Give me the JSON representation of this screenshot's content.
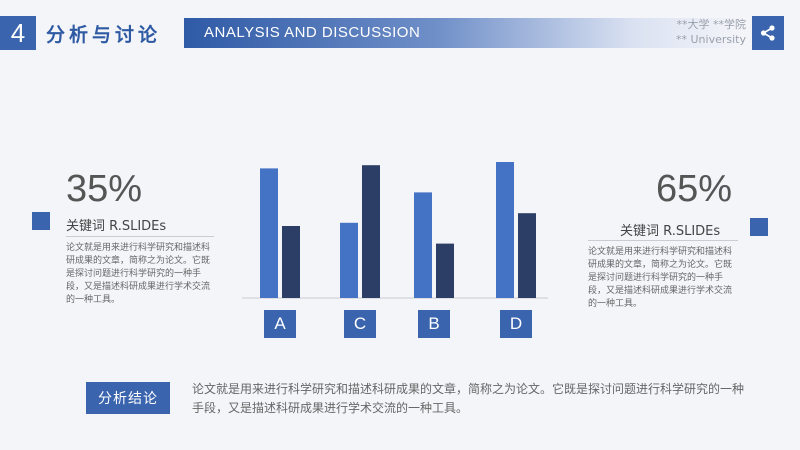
{
  "header": {
    "number": "4",
    "title_cn": "分析与讨论",
    "title_en": "ANALYSIS AND DISCUSSION",
    "school_line1": "**大学 **学院",
    "school_line2": "** University"
  },
  "left_stat": {
    "percent": "35%",
    "keyword": "关键词 R.SLIDEs",
    "paragraph": "论文就是用来进行科学研究和描述科研成果的文章，简称之为论文。它既是探讨问题进行科学研究的一种手段，又是描述科研成果进行学术交流的一种工具。"
  },
  "right_stat": {
    "percent": "65%",
    "keyword": "关键词 R.SLIDEs",
    "paragraph": "论文就是用来进行科学研究和描述科研成果的文章，简称之为论文。它既是探讨问题进行科学研究的一种手段，又是描述科研成果进行学术交流的一种工具。"
  },
  "conclusion": {
    "button": "分析结论",
    "text": "论文就是用来进行科学研究和描述科研成果的文章，简称之为论文。它既是探讨问题进行科学研究的一种手段，又是描述科研成果进行学术交流的一种工具。"
  },
  "colors": {
    "accent": "#3a64ad",
    "series1": "#4472c4",
    "series2": "#2c3e66"
  },
  "chart_data": {
    "type": "bar",
    "categories": [
      "A",
      "C",
      "B",
      "D"
    ],
    "series": [
      {
        "values": [
          8.1,
          4.7,
          6.6,
          8.5
        ]
      },
      {
        "values": [
          4.5,
          8.3,
          3.4,
          5.3
        ]
      }
    ],
    "ylim": [
      0,
      10
    ],
    "grid": false,
    "legend": "none",
    "title": "",
    "xlabel": "",
    "ylabel": ""
  }
}
